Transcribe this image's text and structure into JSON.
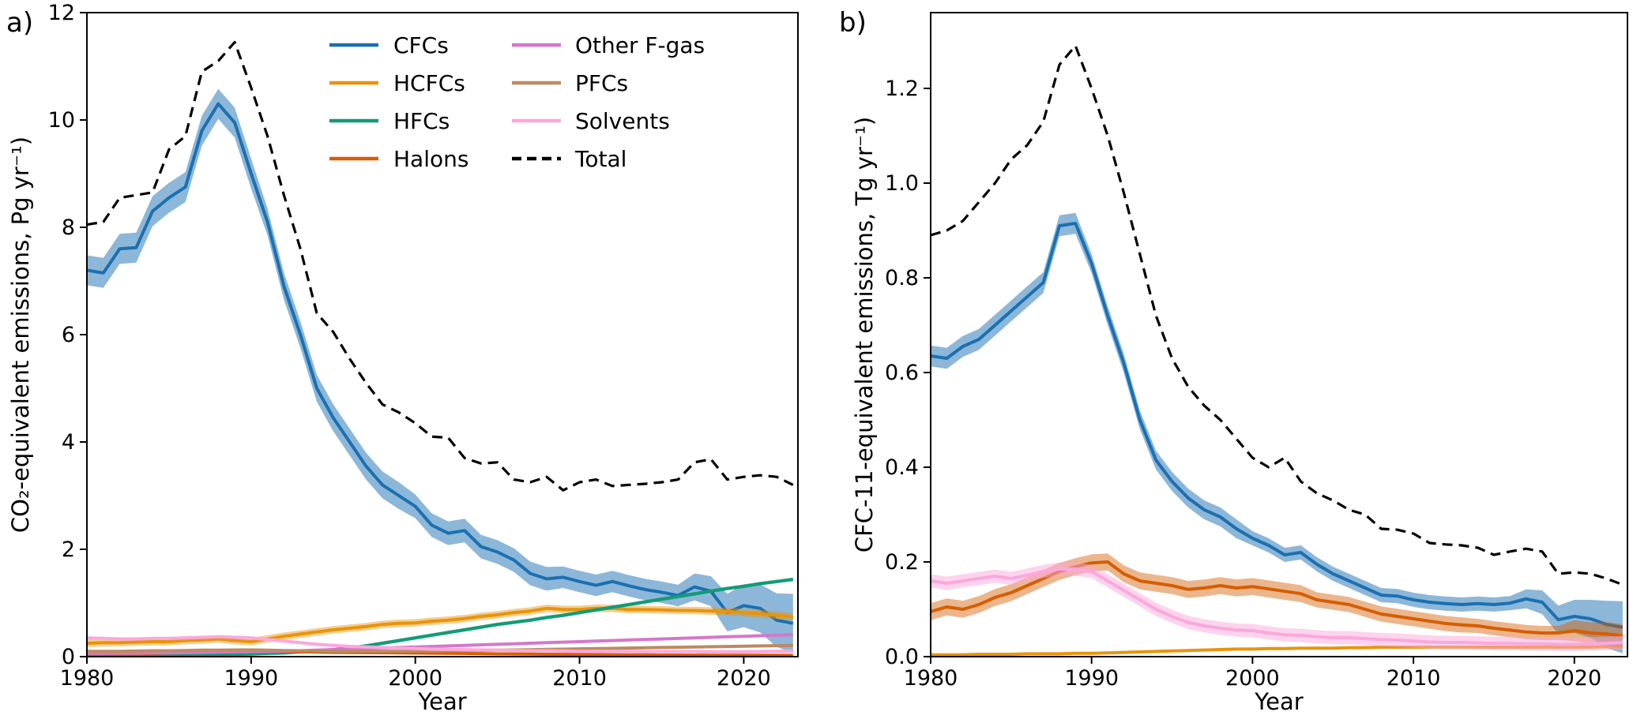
{
  "legend": {
    "entries": [
      {
        "label": "CFCs",
        "color": "#1b70b1",
        "dashed": false
      },
      {
        "label": "HCFCs",
        "color": "#e8940c",
        "dashed": false
      },
      {
        "label": "HFCs",
        "color": "#129b76",
        "dashed": false
      },
      {
        "label": "Halons",
        "color": "#d55e00",
        "dashed": false
      },
      {
        "label": "Other F-gas",
        "color": "#d478cb",
        "dashed": false
      },
      {
        "label": "PFCs",
        "color": "#bc8a62",
        "dashed": false
      },
      {
        "label": "Solvents",
        "color": "#fba8dc",
        "dashed": false
      },
      {
        "label": "Total",
        "color": "#000000",
        "dashed": true
      }
    ]
  },
  "chart_data": [
    {
      "type": "line",
      "panel_label": "a)",
      "xlabel": "Year",
      "ylabel": "CO₂-equivalent emissions, Pg yr⁻¹)",
      "xlim": [
        1980,
        2023.3
      ],
      "ylim": [
        0,
        12
      ],
      "xtick_vals": [
        1980,
        1990,
        2000,
        2010,
        2020
      ],
      "xtick_labels": [
        "1980",
        "1990",
        "2000",
        "2010",
        "2020"
      ],
      "ytick_vals": [
        0,
        2,
        4,
        6,
        8,
        10,
        12
      ],
      "ytick_labels": [
        "0",
        "2",
        "4",
        "6",
        "8",
        "10",
        "12"
      ],
      "grid": false,
      "legend_position": "upper center, two columns, no frame",
      "x": [
        1980,
        1981,
        1982,
        1983,
        1984,
        1985,
        1986,
        1987,
        1988,
        1989,
        1990,
        1991,
        1992,
        1993,
        1994,
        1995,
        1996,
        1997,
        1998,
        1999,
        2000,
        2001,
        2002,
        2003,
        2004,
        2005,
        2006,
        2007,
        2008,
        2009,
        2010,
        2011,
        2012,
        2013,
        2014,
        2015,
        2016,
        2017,
        2018,
        2019,
        2020,
        2021,
        2022,
        2023
      ],
      "series": [
        {
          "name": "CFCs",
          "color": "#1b70b1",
          "band_opacity": 0.5,
          "values": [
            7.2,
            7.15,
            7.6,
            7.62,
            8.3,
            8.55,
            8.75,
            9.8,
            10.3,
            9.95,
            9.0,
            8.1,
            6.9,
            6.0,
            5.0,
            4.45,
            4.0,
            3.55,
            3.2,
            3.0,
            2.8,
            2.45,
            2.3,
            2.35,
            2.05,
            1.95,
            1.8,
            1.55,
            1.45,
            1.48,
            1.4,
            1.33,
            1.4,
            1.32,
            1.25,
            1.2,
            1.14,
            1.3,
            1.22,
            0.82,
            0.95,
            0.9,
            0.68,
            0.62
          ],
          "band": [
            0.28,
            0.28,
            0.28,
            0.28,
            0.28,
            0.28,
            0.28,
            0.28,
            0.28,
            0.28,
            0.28,
            0.25,
            0.25,
            0.25,
            0.25,
            0.25,
            0.25,
            0.25,
            0.25,
            0.25,
            0.22,
            0.22,
            0.22,
            0.22,
            0.22,
            0.22,
            0.22,
            0.22,
            0.22,
            0.2,
            0.2,
            0.2,
            0.2,
            0.2,
            0.2,
            0.2,
            0.2,
            0.25,
            0.28,
            0.35,
            0.4,
            0.45,
            0.5,
            0.55
          ]
        },
        {
          "name": "HCFCs",
          "color": "#e8940c",
          "band_opacity": 0.45,
          "values": [
            0.25,
            0.26,
            0.26,
            0.27,
            0.28,
            0.28,
            0.3,
            0.31,
            0.33,
            0.3,
            0.28,
            0.33,
            0.38,
            0.42,
            0.46,
            0.5,
            0.53,
            0.56,
            0.6,
            0.62,
            0.63,
            0.66,
            0.68,
            0.71,
            0.75,
            0.78,
            0.82,
            0.85,
            0.9,
            0.88,
            0.88,
            0.9,
            0.9,
            0.88,
            0.88,
            0.87,
            0.86,
            0.86,
            0.85,
            0.84,
            0.82,
            0.8,
            0.77,
            0.74
          ],
          "band": 0.07
        },
        {
          "name": "HFCs",
          "color": "#129b76",
          "band_opacity": 0.4,
          "values": [
            0.01,
            0.01,
            0.01,
            0.02,
            0.02,
            0.02,
            0.03,
            0.03,
            0.04,
            0.04,
            0.05,
            0.06,
            0.07,
            0.09,
            0.11,
            0.13,
            0.16,
            0.2,
            0.25,
            0.3,
            0.35,
            0.4,
            0.45,
            0.5,
            0.55,
            0.6,
            0.64,
            0.68,
            0.73,
            0.77,
            0.82,
            0.87,
            0.92,
            0.97,
            1.02,
            1.07,
            1.12,
            1.17,
            1.22,
            1.27,
            1.31,
            1.36,
            1.4,
            1.44
          ],
          "band": 0.035
        },
        {
          "name": "Halons",
          "color": "#d55e00",
          "band_opacity": 0.45,
          "values": [
            0.04,
            0.045,
            0.05,
            0.055,
            0.06,
            0.07,
            0.075,
            0.08,
            0.09,
            0.095,
            0.1,
            0.1,
            0.095,
            0.09,
            0.085,
            0.08,
            0.078,
            0.075,
            0.073,
            0.07,
            0.068,
            0.065,
            0.062,
            0.06,
            0.055,
            0.052,
            0.05,
            0.047,
            0.044,
            0.042,
            0.04,
            0.038,
            0.036,
            0.034,
            0.032,
            0.03,
            0.029,
            0.028,
            0.027,
            0.026,
            0.026,
            0.025,
            0.025,
            0.024
          ],
          "band": 0.012
        },
        {
          "name": "Other F-gas",
          "color": "#d478cb",
          "band_opacity": 0.4,
          "values": [
            0.06,
            0.06,
            0.065,
            0.065,
            0.07,
            0.07,
            0.075,
            0.08,
            0.085,
            0.09,
            0.095,
            0.1,
            0.105,
            0.11,
            0.12,
            0.13,
            0.14,
            0.15,
            0.16,
            0.17,
            0.18,
            0.19,
            0.2,
            0.21,
            0.22,
            0.23,
            0.24,
            0.25,
            0.26,
            0.27,
            0.28,
            0.29,
            0.3,
            0.31,
            0.32,
            0.33,
            0.34,
            0.35,
            0.36,
            0.37,
            0.38,
            0.39,
            0.4,
            0.41
          ],
          "band": 0.01
        },
        {
          "name": "PFCs",
          "color": "#bc8a62",
          "band_opacity": 0.4,
          "values": [
            0.1,
            0.1,
            0.1,
            0.105,
            0.11,
            0.11,
            0.115,
            0.12,
            0.12,
            0.125,
            0.125,
            0.12,
            0.115,
            0.11,
            0.105,
            0.1,
            0.1,
            0.1,
            0.1,
            0.1,
            0.105,
            0.105,
            0.11,
            0.11,
            0.115,
            0.12,
            0.125,
            0.13,
            0.135,
            0.14,
            0.145,
            0.15,
            0.155,
            0.16,
            0.165,
            0.17,
            0.175,
            0.18,
            0.185,
            0.19,
            0.195,
            0.2,
            0.205,
            0.21
          ],
          "band": 0.01
        },
        {
          "name": "Solvents",
          "color": "#fba8dc",
          "band_opacity": 0.5,
          "values": [
            0.35,
            0.34,
            0.33,
            0.33,
            0.34,
            0.34,
            0.35,
            0.36,
            0.37,
            0.36,
            0.35,
            0.32,
            0.29,
            0.26,
            0.23,
            0.21,
            0.19,
            0.18,
            0.17,
            0.16,
            0.15,
            0.14,
            0.135,
            0.13,
            0.125,
            0.12,
            0.115,
            0.11,
            0.11,
            0.105,
            0.1,
            0.1,
            0.1,
            0.1,
            0.095,
            0.095,
            0.095,
            0.095,
            0.09,
            0.09,
            0.09,
            0.095,
            0.1,
            0.1
          ],
          "band": 0.03
        },
        {
          "name": "Total",
          "color": "#000000",
          "dashed": true,
          "values": [
            8.05,
            8.1,
            8.55,
            8.6,
            8.65,
            9.45,
            9.7,
            10.9,
            11.1,
            11.45,
            10.6,
            9.7,
            8.6,
            7.6,
            6.4,
            6.05,
            5.55,
            5.1,
            4.7,
            4.55,
            4.35,
            4.1,
            4.08,
            3.7,
            3.6,
            3.62,
            3.3,
            3.25,
            3.35,
            3.1,
            3.25,
            3.3,
            3.18,
            3.2,
            3.22,
            3.25,
            3.3,
            3.62,
            3.68,
            3.3,
            3.35,
            3.38,
            3.35,
            3.2
          ]
        }
      ]
    },
    {
      "type": "line",
      "panel_label": "b)",
      "xlabel": "Year",
      "ylabel": "CFC-11-equivalent emissions, Tg yr⁻¹)",
      "xlim": [
        1980,
        2023.3
      ],
      "ylim": [
        0,
        1.36
      ],
      "xtick_vals": [
        1980,
        1990,
        2000,
        2010,
        2020
      ],
      "xtick_labels": [
        "1980",
        "1990",
        "2000",
        "2010",
        "2020"
      ],
      "ytick_vals": [
        0,
        0.2,
        0.4,
        0.6,
        0.8,
        1.0,
        1.2
      ],
      "ytick_labels": [
        "0.0",
        "0.2",
        "0.4",
        "0.6",
        "0.8",
        "1.0",
        "1.2"
      ],
      "grid": false,
      "x": [
        1980,
        1981,
        1982,
        1983,
        1984,
        1985,
        1986,
        1987,
        1988,
        1989,
        1990,
        1991,
        1992,
        1993,
        1994,
        1995,
        1996,
        1997,
        1998,
        1999,
        2000,
        2001,
        2002,
        2003,
        2004,
        2005,
        2006,
        2007,
        2008,
        2009,
        2010,
        2011,
        2012,
        2013,
        2014,
        2015,
        2016,
        2017,
        2018,
        2019,
        2020,
        2021,
        2022,
        2023
      ],
      "series": [
        {
          "name": "CFCs",
          "color": "#1b70b1",
          "band_opacity": 0.5,
          "values": [
            0.635,
            0.63,
            0.655,
            0.67,
            0.7,
            0.73,
            0.76,
            0.79,
            0.91,
            0.915,
            0.83,
            0.72,
            0.62,
            0.5,
            0.415,
            0.37,
            0.335,
            0.31,
            0.295,
            0.27,
            0.25,
            0.235,
            0.215,
            0.22,
            0.195,
            0.175,
            0.16,
            0.145,
            0.13,
            0.128,
            0.12,
            0.115,
            0.112,
            0.11,
            0.112,
            0.11,
            0.113,
            0.122,
            0.115,
            0.078,
            0.085,
            0.08,
            0.068,
            0.062
          ],
          "band": [
            0.022,
            0.022,
            0.022,
            0.022,
            0.022,
            0.022,
            0.022,
            0.022,
            0.022,
            0.022,
            0.02,
            0.02,
            0.02,
            0.02,
            0.02,
            0.02,
            0.02,
            0.02,
            0.02,
            0.02,
            0.015,
            0.015,
            0.015,
            0.015,
            0.015,
            0.015,
            0.015,
            0.015,
            0.015,
            0.015,
            0.015,
            0.015,
            0.015,
            0.015,
            0.015,
            0.015,
            0.015,
            0.02,
            0.025,
            0.03,
            0.035,
            0.04,
            0.05,
            0.055
          ]
        },
        {
          "name": "HCFCs",
          "color": "#e8940c",
          "band_opacity": 0.45,
          "values": [
            0.004,
            0.004,
            0.004,
            0.005,
            0.005,
            0.005,
            0.006,
            0.006,
            0.006,
            0.007,
            0.007,
            0.008,
            0.009,
            0.01,
            0.011,
            0.012,
            0.013,
            0.014,
            0.015,
            0.016,
            0.016,
            0.017,
            0.017,
            0.018,
            0.018,
            0.018,
            0.019,
            0.019,
            0.02,
            0.02,
            0.02,
            0.02,
            0.02,
            0.02,
            0.02,
            0.02,
            0.02,
            0.02,
            0.02,
            0.02,
            0.02,
            0.02,
            0.021,
            0.021
          ],
          "band": 0.002
        },
        {
          "name": "Halons",
          "color": "#d55e00",
          "band_opacity": 0.45,
          "values": [
            0.095,
            0.105,
            0.1,
            0.11,
            0.125,
            0.135,
            0.15,
            0.165,
            0.18,
            0.19,
            0.198,
            0.2,
            0.175,
            0.16,
            0.155,
            0.15,
            0.142,
            0.145,
            0.15,
            0.145,
            0.148,
            0.143,
            0.138,
            0.133,
            0.12,
            0.115,
            0.11,
            0.1,
            0.09,
            0.085,
            0.08,
            0.075,
            0.07,
            0.067,
            0.065,
            0.06,
            0.056,
            0.052,
            0.05,
            0.05,
            0.055,
            0.05,
            0.048,
            0.044
          ],
          "band": [
            0.018,
            0.018,
            0.018,
            0.018,
            0.018,
            0.018,
            0.018,
            0.018,
            0.018,
            0.018,
            0.018,
            0.018,
            0.018,
            0.018,
            0.018,
            0.018,
            0.018,
            0.018,
            0.018,
            0.018,
            0.018,
            0.018,
            0.018,
            0.018,
            0.016,
            0.016,
            0.016,
            0.016,
            0.016,
            0.016,
            0.016,
            0.016,
            0.016,
            0.016,
            0.015,
            0.015,
            0.015,
            0.015,
            0.015,
            0.015,
            0.022,
            0.022,
            0.025,
            0.025
          ]
        },
        {
          "name": "Solvents",
          "color": "#fba8dc",
          "band_opacity": 0.5,
          "values": [
            0.16,
            0.155,
            0.16,
            0.165,
            0.17,
            0.165,
            0.172,
            0.18,
            0.185,
            0.185,
            0.18,
            0.16,
            0.14,
            0.12,
            0.1,
            0.085,
            0.072,
            0.065,
            0.06,
            0.056,
            0.055,
            0.05,
            0.046,
            0.045,
            0.042,
            0.04,
            0.04,
            0.038,
            0.036,
            0.035,
            0.033,
            0.031,
            0.03,
            0.03,
            0.029,
            0.028,
            0.028,
            0.027,
            0.027,
            0.026,
            0.026,
            0.027,
            0.028,
            0.03
          ],
          "band": 0.014
        },
        {
          "name": "Total",
          "color": "#000000",
          "dashed": true,
          "values": [
            0.89,
            0.9,
            0.92,
            0.96,
            1.0,
            1.05,
            1.08,
            1.13,
            1.25,
            1.29,
            1.2,
            1.1,
            0.98,
            0.85,
            0.72,
            0.63,
            0.57,
            0.53,
            0.5,
            0.46,
            0.42,
            0.4,
            0.42,
            0.37,
            0.345,
            0.33,
            0.31,
            0.3,
            0.27,
            0.268,
            0.26,
            0.24,
            0.237,
            0.235,
            0.23,
            0.215,
            0.222,
            0.228,
            0.222,
            0.175,
            0.178,
            0.175,
            0.165,
            0.152
          ]
        }
      ]
    }
  ]
}
